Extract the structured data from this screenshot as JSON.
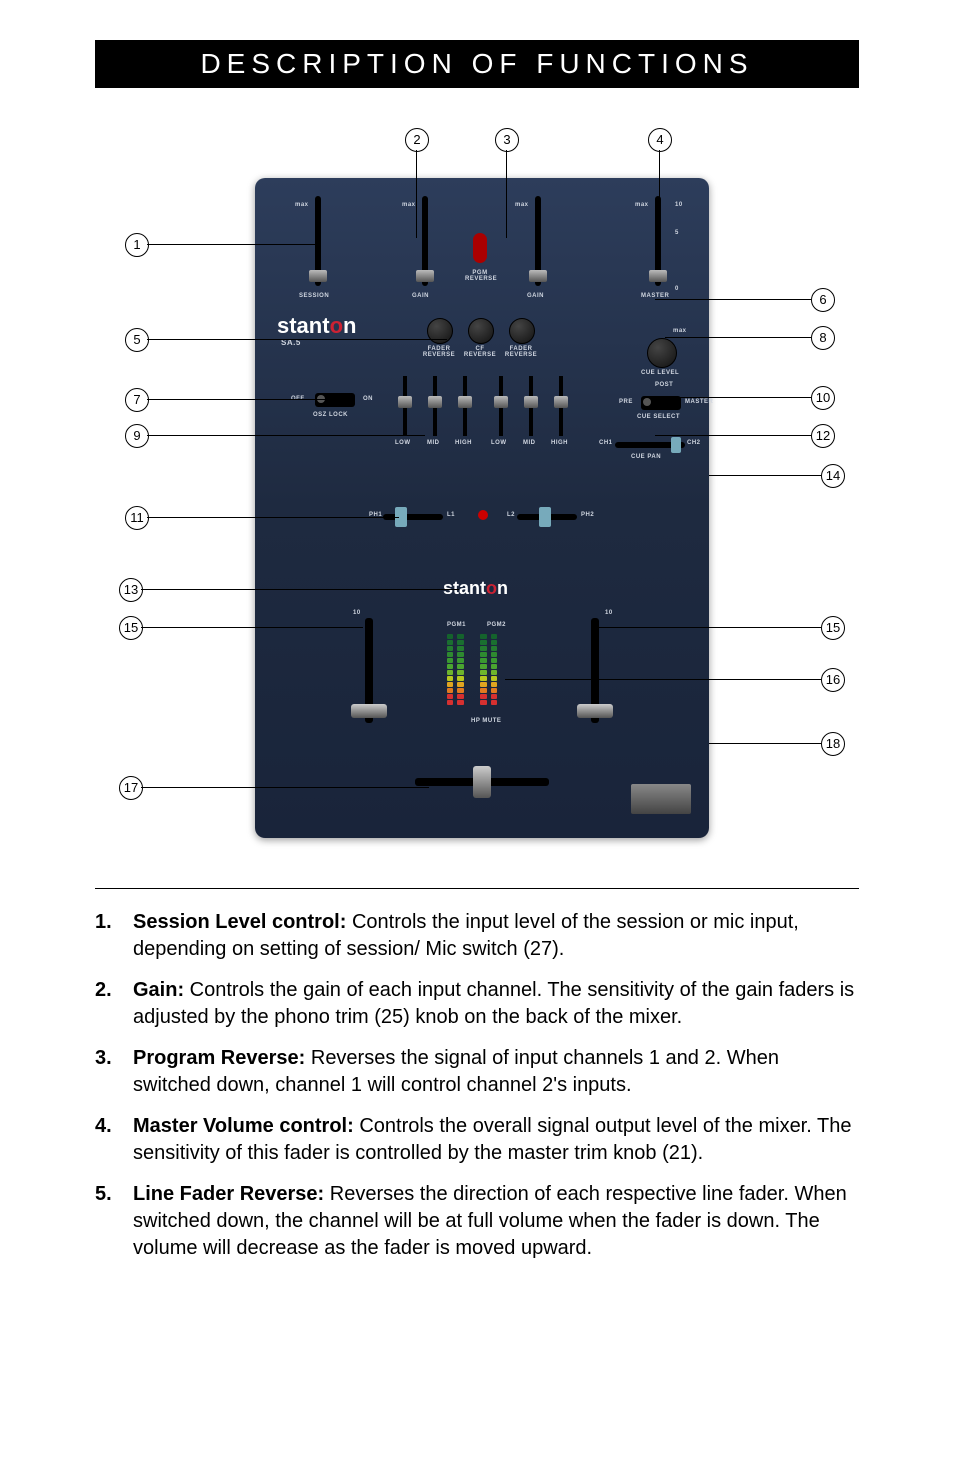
{
  "title": "DESCRIPTION OF FUNCTIONS",
  "callouts": {
    "1": "1",
    "2": "2",
    "3": "3",
    "4": "4",
    "5": "5",
    "6": "6",
    "7": "7",
    "8": "8",
    "9": "9",
    "10": "10",
    "11": "11",
    "12": "12",
    "13": "13",
    "14": "14",
    "15a": "15",
    "15b": "15",
    "16": "16",
    "17": "17",
    "18": "18"
  },
  "mixer": {
    "brand_html": "stant",
    "brand_o": "o",
    "brand_n": "n",
    "sub_brand": "SA.5",
    "labels": {
      "session": "SESSION",
      "gain_l": "GAIN",
      "gain_r": "GAIN",
      "pgm_reverse": "PGM\nREVERSE",
      "master": "MASTER",
      "fader_rev_l": "FADER\nREVERSE",
      "cf_rev": "CF\nREVERSE",
      "fader_rev_r": "FADER\nREVERSE",
      "cue_level": "CUE LEVEL",
      "post": "POST",
      "pre": "PRE",
      "master_cue": "MASTER",
      "cue_select": "CUE SELECT",
      "osz_lock": "OSZ LOCK",
      "off": "OFF",
      "on": "ON",
      "low": "LOW",
      "mid": "MID",
      "high": "HIGH",
      "ch1": "CH1",
      "ch2": "CH2",
      "cue_pan": "CUE PAN",
      "ph1": "PH1",
      "l1": "L1",
      "l2": "L2",
      "ph2": "PH2",
      "pgm1": "PGM1",
      "pgm2": "PGM2",
      "hpmute": "HP MUTE",
      "max": "max",
      "min_master": "max"
    },
    "logo2": "stant",
    "scale_nums": [
      "10",
      "",
      "5",
      "",
      "",
      "",
      "0"
    ],
    "meter_colors": [
      "#d63030",
      "#d63030",
      "#e07a20",
      "#e0a520",
      "#b7c820",
      "#6fb52c",
      "#4aa530",
      "#3a9830",
      "#2e8a30",
      "#247c30",
      "#1a6f30",
      "#14632c"
    ]
  },
  "descriptions": [
    {
      "n": "1.",
      "lead": "Session Level control:",
      "rest": " Controls the input level of the session or mic input, depending on setting of session/ Mic switch (27)."
    },
    {
      "n": "2.",
      "lead": "Gain:",
      "rest": " Controls the gain of each input channel. The sensitivity of the gain faders is adjusted by the phono trim (25) knob on the back of the mixer."
    },
    {
      "n": "3.",
      "lead": "Program Reverse:",
      "rest": " Reverses the signal of input channels 1 and 2. When switched down, channel 1 will control channel 2's inputs."
    },
    {
      "n": "4.",
      "lead": "Master Volume control:",
      "rest": " Controls the overall signal output level of the mixer. The sensitivity of this fader is controlled by the master trim knob (21)."
    },
    {
      "n": "5.",
      "lead": "Line Fader Reverse:",
      "rest": " Reverses the direction of each respective line fader. When switched down, the channel will be at full volume when the fader is down. The volume will decrease as the fader is moved upward."
    }
  ]
}
